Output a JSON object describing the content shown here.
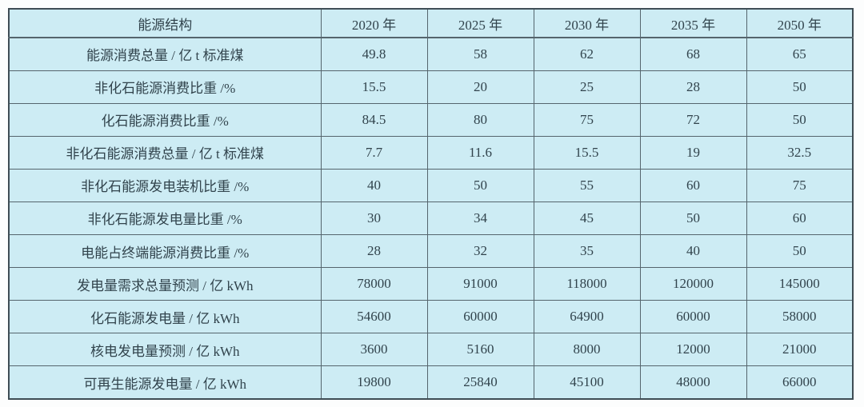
{
  "chart_data": {
    "type": "table",
    "title": "能源结构",
    "header": {
      "corner": "能源结构",
      "year_columns": [
        "2020 年",
        "2025 年",
        "2030 年",
        "2035 年",
        "2050 年"
      ]
    },
    "rows": [
      {
        "label": "能源消费总量 / 亿 t 标准煤",
        "values": [
          "49.8",
          "58",
          "62",
          "68",
          "65"
        ]
      },
      {
        "label": "非化石能源消费比重 /%",
        "values": [
          "15.5",
          "20",
          "25",
          "28",
          "50"
        ]
      },
      {
        "label": "化石能源消费比重 /%",
        "values": [
          "84.5",
          "80",
          "75",
          "72",
          "50"
        ]
      },
      {
        "label": "非化石能源消费总量 / 亿 t 标准煤",
        "values": [
          "7.7",
          "11.6",
          "15.5",
          "19",
          "32.5"
        ]
      },
      {
        "label": "非化石能源发电装机比重 /%",
        "values": [
          "40",
          "50",
          "55",
          "60",
          "75"
        ]
      },
      {
        "label": "非化石能源发电量比重 /%",
        "values": [
          "30",
          "34",
          "45",
          "50",
          "60"
        ]
      },
      {
        "label": "电能占终端能源消费比重 /%",
        "values": [
          "28",
          "32",
          "35",
          "40",
          "50"
        ]
      },
      {
        "label": "发电量需求总量预测 / 亿 kWh",
        "values": [
          "78000",
          "91000",
          "118000",
          "120000",
          "145000"
        ]
      },
      {
        "label": "化石能源发电量 / 亿 kWh",
        "values": [
          "54600",
          "60000",
          "64900",
          "60000",
          "58000"
        ]
      },
      {
        "label": "核电发电量预测 / 亿 kWh",
        "values": [
          "3600",
          "5160",
          "8000",
          "12000",
          "21000"
        ]
      },
      {
        "label": "可再生能源发电量 / 亿 kWh",
        "values": [
          "19800",
          "25840",
          "45100",
          "48000",
          "66000"
        ]
      }
    ],
    "layout": {
      "grid": "on",
      "header_position": "top",
      "label_column_position": "left"
    }
  },
  "colors": {
    "cell_bg": "#cdecf4",
    "grid_line": "#55656d",
    "outer_border": "#3e4c54",
    "text": "#31434c",
    "page_bg": "#fcfdfd"
  }
}
